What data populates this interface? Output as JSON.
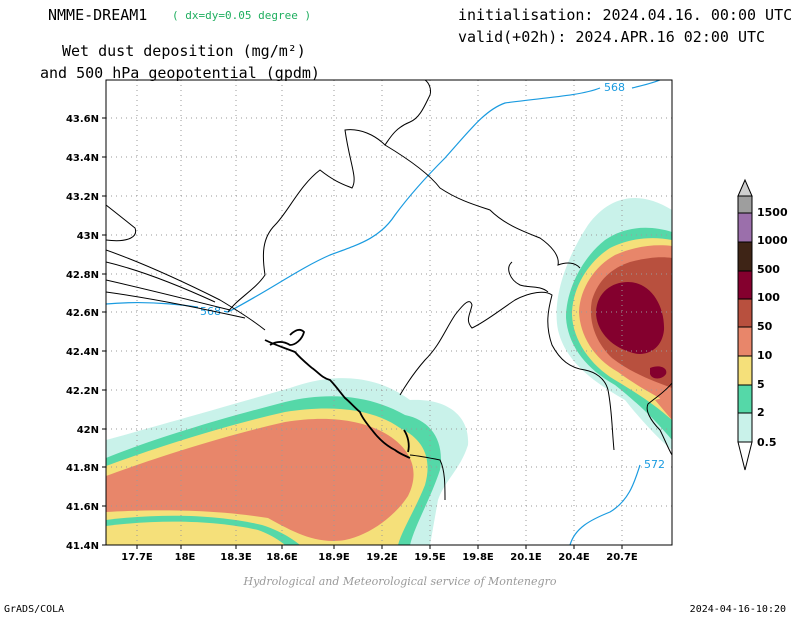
{
  "header": {
    "model": "NMME-DREAM1",
    "resolution": "( dx=dy=0.05 degree )",
    "initialisation": "initialisation: 2024.04.16. 00:00 UTC",
    "valid": "valid(+02h): 2024.APR.16 02:00 UTC",
    "variable_line1": "Wet dust deposition (mg/m²)",
    "variable_line2": "and 500 hPa geopotential (gpdm)"
  },
  "map": {
    "lon_labels": [
      "17.7E",
      "18E",
      "18.3E",
      "18.6E",
      "18.9E",
      "19.2E",
      "19.5E",
      "19.8E",
      "20.1E",
      "20.4E",
      "20.7E"
    ],
    "lat_labels": [
      "43.6N",
      "43.4N",
      "43.2N",
      "43N",
      "42.8N",
      "42.6N",
      "42.4N",
      "42.2N",
      "42N",
      "41.8N",
      "41.6N",
      "41.4N"
    ],
    "contour_labels": [
      "568",
      "568",
      "572"
    ],
    "grid": true,
    "colors": {
      "contour": "#1a9be0",
      "border": "#000000",
      "grid": "#9a9a9a"
    }
  },
  "legend": {
    "levels": [
      "1500",
      "1000",
      "500",
      "100",
      "50",
      "10",
      "5",
      "2",
      "0.5"
    ],
    "colors": [
      "#9e9e9e",
      "#9b6fab",
      "#3e2416",
      "#84002e",
      "#b8503e",
      "#e8866a",
      "#f5e07a",
      "#55d8a8",
      "#c9f2ea"
    ]
  },
  "credit": "Hydrological and Meteorological service of Montenegro",
  "footer": {
    "left": "GrADS/COLA",
    "right": "2024-04-16-10:20"
  }
}
